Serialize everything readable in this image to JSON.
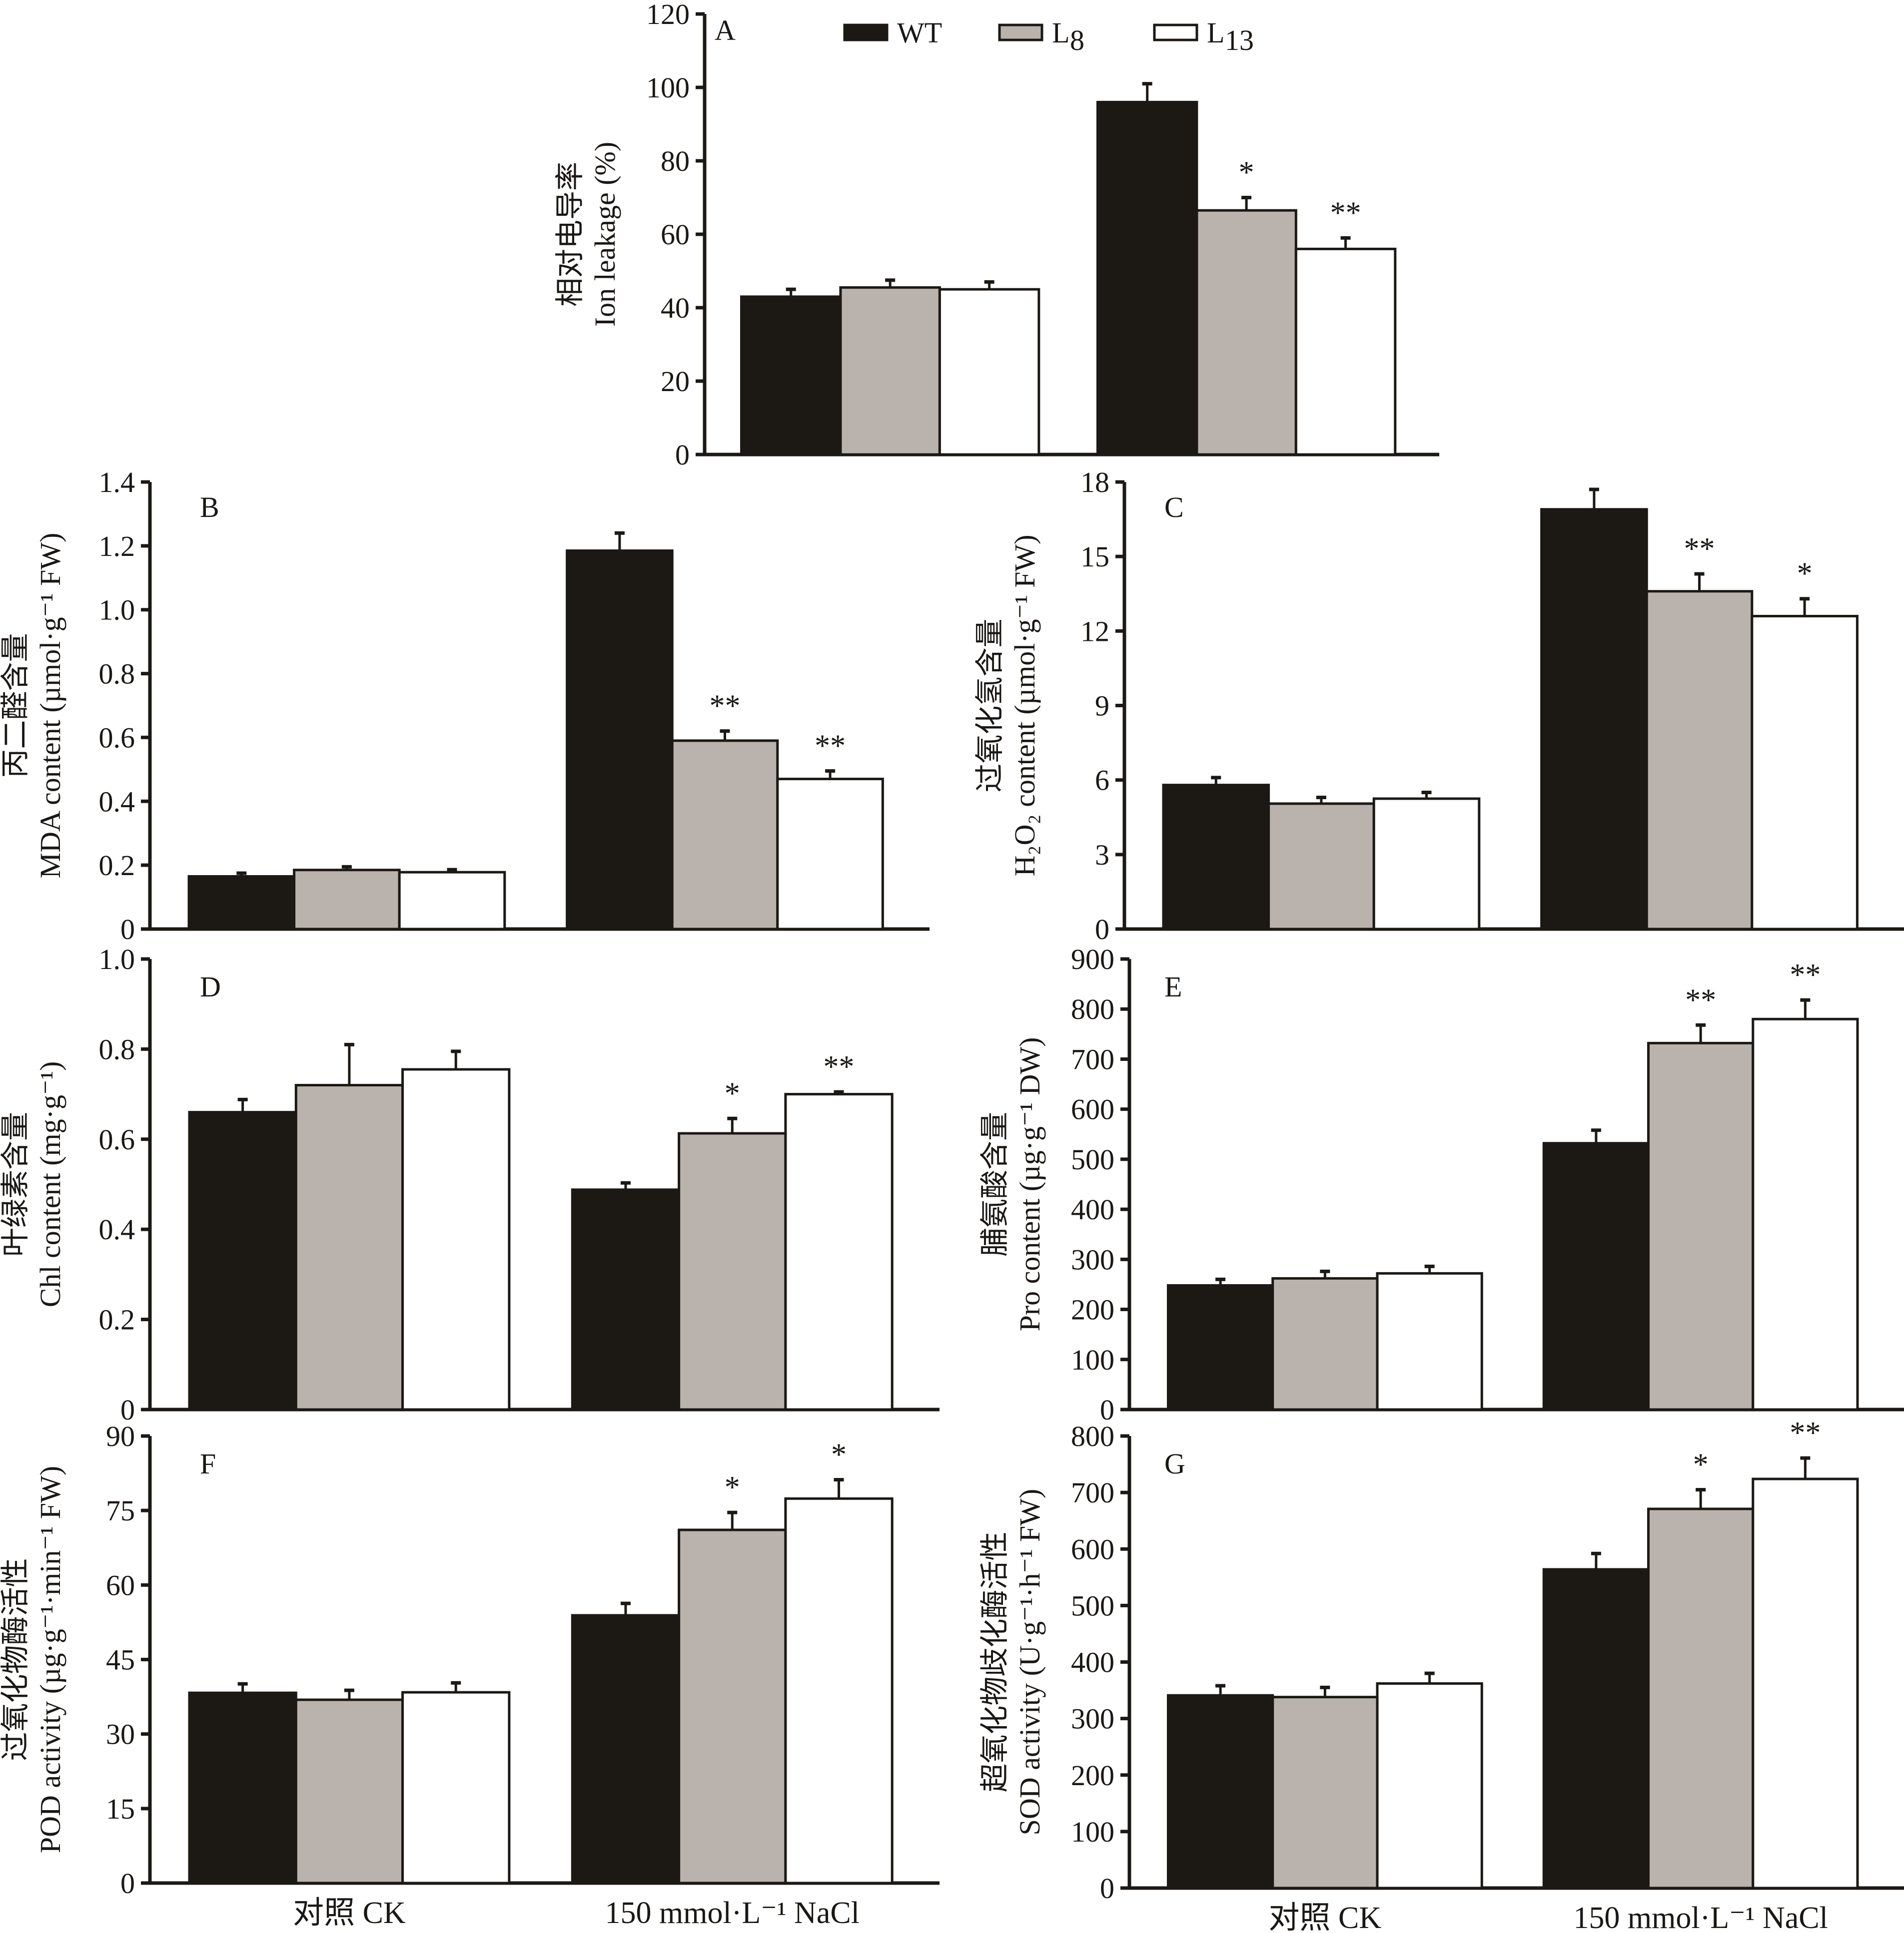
{
  "legend": {
    "items": [
      {
        "label": "WT",
        "sub": "",
        "color": "#1c1915"
      },
      {
        "label": "L",
        "sub": "8",
        "color": "#bab2ad"
      },
      {
        "label": "L",
        "sub": "13",
        "color": "#ffffff"
      }
    ]
  },
  "x_categories": [
    "对照 CK",
    "150 mmol·L⁻¹ NaCl"
  ],
  "chart_data": [
    {
      "panel": "A",
      "type": "bar",
      "ylabel_cn": "相对电导率",
      "ylabel_en": "Ion leakage (%)",
      "ylim": [
        0,
        120
      ],
      "yticks": [
        0,
        20,
        40,
        60,
        80,
        100,
        120
      ],
      "categories": [
        "对照 CK",
        "150 mmol·L⁻¹ NaCl"
      ],
      "series": [
        {
          "name": "WT",
          "values": [
            43,
            96
          ],
          "errors": [
            2,
            5
          ],
          "sig": [
            "",
            ""
          ]
        },
        {
          "name": "L8",
          "values": [
            45.5,
            66.5
          ],
          "errors": [
            2,
            3.5
          ],
          "sig": [
            "",
            "*"
          ]
        },
        {
          "name": "L13",
          "values": [
            45,
            56
          ],
          "errors": [
            2,
            3
          ],
          "sig": [
            "",
            "**"
          ]
        }
      ]
    },
    {
      "panel": "B",
      "type": "bar",
      "ylabel_cn": "丙二醛含量",
      "ylabel_en": "MDA content (µmol·g⁻¹ FW)",
      "ylim": [
        0,
        1.4
      ],
      "yticks": [
        "0",
        "0.2",
        "0.4",
        "0.6",
        "0.8",
        "1.0",
        "1.2",
        "1.4"
      ],
      "categories": [
        "对照 CK",
        "150 mmol·L⁻¹ NaCl"
      ],
      "series": [
        {
          "name": "WT",
          "values": [
            0.165,
            1.185
          ],
          "errors": [
            0.01,
            0.055
          ],
          "sig": [
            "",
            ""
          ]
        },
        {
          "name": "L8",
          "values": [
            0.185,
            0.59
          ],
          "errors": [
            0.01,
            0.03
          ],
          "sig": [
            "",
            "**"
          ]
        },
        {
          "name": "L13",
          "values": [
            0.178,
            0.47
          ],
          "errors": [
            0.008,
            0.025
          ],
          "sig": [
            "",
            "**"
          ]
        }
      ]
    },
    {
      "panel": "C",
      "type": "bar",
      "ylabel_cn": "过氧化氢含量",
      "ylabel_en": "H₂O₂ content (µmol·g⁻¹ FW)",
      "ylim": [
        0,
        18
      ],
      "yticks": [
        "0",
        "3",
        "6",
        "9",
        "12",
        "15",
        "18"
      ],
      "categories": [
        "对照 CK",
        "150 mmol·L⁻¹ NaCl"
      ],
      "series": [
        {
          "name": "WT",
          "values": [
            5.8,
            16.9
          ],
          "errors": [
            0.3,
            0.8
          ],
          "sig": [
            "",
            ""
          ]
        },
        {
          "name": "L8",
          "values": [
            5.05,
            13.6
          ],
          "errors": [
            0.25,
            0.7
          ],
          "sig": [
            "",
            "**"
          ]
        },
        {
          "name": "L13",
          "values": [
            5.25,
            12.6
          ],
          "errors": [
            0.25,
            0.7
          ],
          "sig": [
            "",
            "*"
          ]
        }
      ]
    },
    {
      "panel": "D",
      "type": "bar",
      "ylabel_cn": "叶绿素含量",
      "ylabel_en": "Chl content (mg·g⁻¹)",
      "ylim": [
        0,
        1.0
      ],
      "yticks": [
        "0",
        "0.2",
        "0.4",
        "0.6",
        "0.8",
        "1.0"
      ],
      "categories": [
        "对照 CK",
        "150 mmol·L⁻¹ NaCl"
      ],
      "series": [
        {
          "name": "WT",
          "values": [
            0.66,
            0.488
          ],
          "errors": [
            0.028,
            0.015
          ],
          "sig": [
            "",
            ""
          ]
        },
        {
          "name": "L8",
          "values": [
            0.72,
            0.613
          ],
          "errors": [
            0.09,
            0.033
          ],
          "sig": [
            "",
            "*"
          ]
        },
        {
          "name": "L13",
          "values": [
            0.755,
            0.7
          ],
          "errors": [
            0.04,
            0.005
          ],
          "sig": [
            "",
            "**"
          ]
        }
      ]
    },
    {
      "panel": "E",
      "type": "bar",
      "ylabel_cn": "脯氨酸含量",
      "ylabel_en": "Pro content (µg·g⁻¹ DW)",
      "ylim": [
        0,
        900
      ],
      "yticks": [
        "0",
        "100",
        "200",
        "300",
        "400",
        "500",
        "600",
        "700",
        "800",
        "900"
      ],
      "categories": [
        "对照 CK",
        "150 mmol·L⁻¹ NaCl"
      ],
      "series": [
        {
          "name": "WT",
          "values": [
            248,
            532
          ],
          "errors": [
            12,
            26
          ],
          "sig": [
            "",
            ""
          ]
        },
        {
          "name": "L8",
          "values": [
            262,
            732
          ],
          "errors": [
            14,
            36
          ],
          "sig": [
            "",
            "**"
          ]
        },
        {
          "name": "L13",
          "values": [
            272,
            780
          ],
          "errors": [
            14,
            38
          ],
          "sig": [
            "",
            "**"
          ]
        }
      ]
    },
    {
      "panel": "F",
      "type": "bar",
      "ylabel_cn": "过氧化物酶活性",
      "ylabel_en": "POD activity (µg·g⁻¹·min⁻¹ FW)",
      "ylim": [
        0,
        90
      ],
      "yticks": [
        "0",
        "15",
        "30",
        "45",
        "60",
        "75",
        "90"
      ],
      "categories": [
        "对照 CK",
        "150 mmol·L⁻¹ NaCl"
      ],
      "series": [
        {
          "name": "WT",
          "values": [
            38.3,
            53.9
          ],
          "errors": [
            1.8,
            2.4
          ],
          "sig": [
            "",
            ""
          ]
        },
        {
          "name": "L8",
          "values": [
            36.9,
            71.1
          ],
          "errors": [
            1.9,
            3.5
          ],
          "sig": [
            "",
            "*"
          ]
        },
        {
          "name": "L13",
          "values": [
            38.4,
            77.4
          ],
          "errors": [
            1.9,
            3.8
          ],
          "sig": [
            "",
            "*"
          ]
        }
      ]
    },
    {
      "panel": "G",
      "type": "bar",
      "ylabel_cn": "超氧化物歧化酶活性",
      "ylabel_en": "SOD activity (U·g⁻¹·h⁻¹ FW)",
      "ylim": [
        0,
        800
      ],
      "yticks": [
        "0",
        "100",
        "200",
        "300",
        "400",
        "500",
        "600",
        "700",
        "800"
      ],
      "categories": [
        "对照 CK",
        "150 mmol·L⁻¹ NaCl"
      ],
      "series": [
        {
          "name": "WT",
          "values": [
            341,
            564
          ],
          "errors": [
            17,
            28
          ],
          "sig": [
            "",
            ""
          ]
        },
        {
          "name": "L8",
          "values": [
            338,
            671
          ],
          "errors": [
            17,
            34
          ],
          "sig": [
            "",
            "*"
          ]
        },
        {
          "name": "L13",
          "values": [
            362,
            724
          ],
          "errors": [
            18,
            37
          ],
          "sig": [
            "",
            "**"
          ]
        }
      ]
    }
  ]
}
